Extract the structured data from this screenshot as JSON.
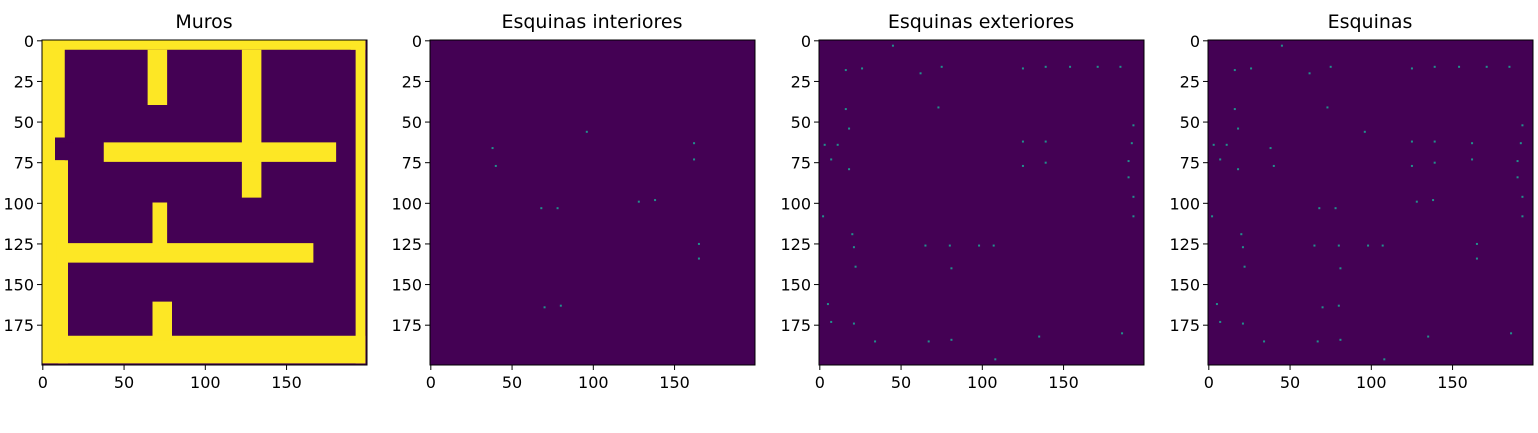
{
  "figure_colors": {
    "background": "#440154",
    "wall": "#fde725",
    "point": "#21918c"
  },
  "chart_data": [
    {
      "type": "heatmap",
      "title": "Muros",
      "xlim": [
        0,
        199
      ],
      "ylim": [
        199,
        0
      ],
      "xticks": [
        0,
        50,
        100,
        150
      ],
      "yticks": [
        0,
        25,
        50,
        75,
        100,
        125,
        150,
        175
      ],
      "walls": [
        [
          0,
          0,
          199,
          6
        ],
        [
          0,
          0,
          14,
          36
        ],
        [
          0,
          0,
          8,
          199
        ],
        [
          0,
          74,
          14,
          198
        ],
        [
          8,
          36,
          14,
          60
        ],
        [
          8,
          74,
          16,
          199
        ],
        [
          193,
          0,
          199,
          199
        ],
        [
          190,
          0,
          199,
          6
        ],
        [
          10,
          182,
          199,
          199
        ],
        [
          65,
          6,
          77,
          40
        ],
        [
          123,
          6,
          135,
          97
        ],
        [
          38,
          63,
          181,
          75
        ],
        [
          9,
          125,
          167,
          137
        ],
        [
          68,
          100,
          77,
          131
        ],
        [
          68,
          161,
          80,
          185
        ]
      ],
      "holes": [
        [
          11,
          63,
          20,
          72
        ]
      ],
      "points": []
    },
    {
      "type": "scatter",
      "title": "Esquinas interiores",
      "xlim": [
        0,
        199
      ],
      "ylim": [
        199,
        0
      ],
      "xticks": [
        0,
        50,
        100,
        150
      ],
      "yticks": [
        0,
        25,
        50,
        75,
        100,
        125,
        150,
        175
      ],
      "points": [
        [
          96,
          56
        ],
        [
          38,
          66
        ],
        [
          40,
          77
        ],
        [
          162,
          63
        ],
        [
          162,
          73
        ],
        [
          68,
          103
        ],
        [
          78,
          103
        ],
        [
          128,
          99
        ],
        [
          138,
          98
        ],
        [
          165,
          125
        ],
        [
          165,
          134
        ],
        [
          70,
          164
        ],
        [
          80,
          163
        ]
      ]
    },
    {
      "type": "scatter",
      "title": "Esquinas exteriores",
      "xlim": [
        0,
        199
      ],
      "ylim": [
        199,
        0
      ],
      "xticks": [
        0,
        50,
        100,
        150
      ],
      "yticks": [
        0,
        25,
        50,
        75,
        100,
        125,
        150,
        175
      ],
      "points": [
        [
          45,
          3
        ],
        [
          16,
          18
        ],
        [
          26,
          17
        ],
        [
          62,
          20
        ],
        [
          75,
          16
        ],
        [
          125,
          17
        ],
        [
          139,
          16
        ],
        [
          154,
          16
        ],
        [
          171,
          16
        ],
        [
          185,
          16
        ],
        [
          16,
          42
        ],
        [
          18,
          54
        ],
        [
          73,
          41
        ],
        [
          3,
          64
        ],
        [
          11,
          64
        ],
        [
          7,
          73
        ],
        [
          18,
          79
        ],
        [
          125,
          62
        ],
        [
          139,
          62
        ],
        [
          125,
          77
        ],
        [
          139,
          75
        ],
        [
          193,
          52
        ],
        [
          192,
          63
        ],
        [
          190,
          74
        ],
        [
          190,
          84
        ],
        [
          193,
          96
        ],
        [
          193,
          108
        ],
        [
          2,
          108
        ],
        [
          20,
          119
        ],
        [
          21,
          127
        ],
        [
          22,
          139
        ],
        [
          65,
          126
        ],
        [
          80,
          126
        ],
        [
          98,
          126
        ],
        [
          107,
          126
        ],
        [
          81,
          140
        ],
        [
          5,
          162
        ],
        [
          7,
          173
        ],
        [
          21,
          174
        ],
        [
          34,
          185
        ],
        [
          67,
          185
        ],
        [
          81,
          184
        ],
        [
          108,
          196
        ],
        [
          135,
          182
        ],
        [
          186,
          180
        ]
      ]
    },
    {
      "type": "scatter",
      "title": "Esquinas",
      "xlim": [
        0,
        199
      ],
      "ylim": [
        199,
        0
      ],
      "xticks": [
        0,
        50,
        100,
        150
      ],
      "yticks": [
        0,
        25,
        50,
        75,
        100,
        125,
        150,
        175
      ],
      "points": [
        [
          45,
          3
        ],
        [
          16,
          18
        ],
        [
          26,
          17
        ],
        [
          62,
          20
        ],
        [
          75,
          16
        ],
        [
          125,
          17
        ],
        [
          139,
          16
        ],
        [
          154,
          16
        ],
        [
          171,
          16
        ],
        [
          185,
          16
        ],
        [
          16,
          42
        ],
        [
          18,
          54
        ],
        [
          73,
          41
        ],
        [
          3,
          64
        ],
        [
          11,
          64
        ],
        [
          7,
          73
        ],
        [
          18,
          79
        ],
        [
          125,
          62
        ],
        [
          139,
          62
        ],
        [
          125,
          77
        ],
        [
          139,
          75
        ],
        [
          193,
          52
        ],
        [
          192,
          63
        ],
        [
          190,
          74
        ],
        [
          190,
          84
        ],
        [
          193,
          96
        ],
        [
          193,
          108
        ],
        [
          2,
          108
        ],
        [
          20,
          119
        ],
        [
          21,
          127
        ],
        [
          22,
          139
        ],
        [
          65,
          126
        ],
        [
          80,
          126
        ],
        [
          98,
          126
        ],
        [
          107,
          126
        ],
        [
          81,
          140
        ],
        [
          5,
          162
        ],
        [
          7,
          173
        ],
        [
          21,
          174
        ],
        [
          34,
          185
        ],
        [
          67,
          185
        ],
        [
          81,
          184
        ],
        [
          108,
          196
        ],
        [
          135,
          182
        ],
        [
          186,
          180
        ],
        [
          96,
          56
        ],
        [
          38,
          66
        ],
        [
          40,
          77
        ],
        [
          162,
          63
        ],
        [
          162,
          73
        ],
        [
          68,
          103
        ],
        [
          78,
          103
        ],
        [
          128,
          99
        ],
        [
          138,
          98
        ],
        [
          165,
          125
        ],
        [
          165,
          134
        ],
        [
          70,
          164
        ],
        [
          80,
          163
        ]
      ]
    }
  ]
}
